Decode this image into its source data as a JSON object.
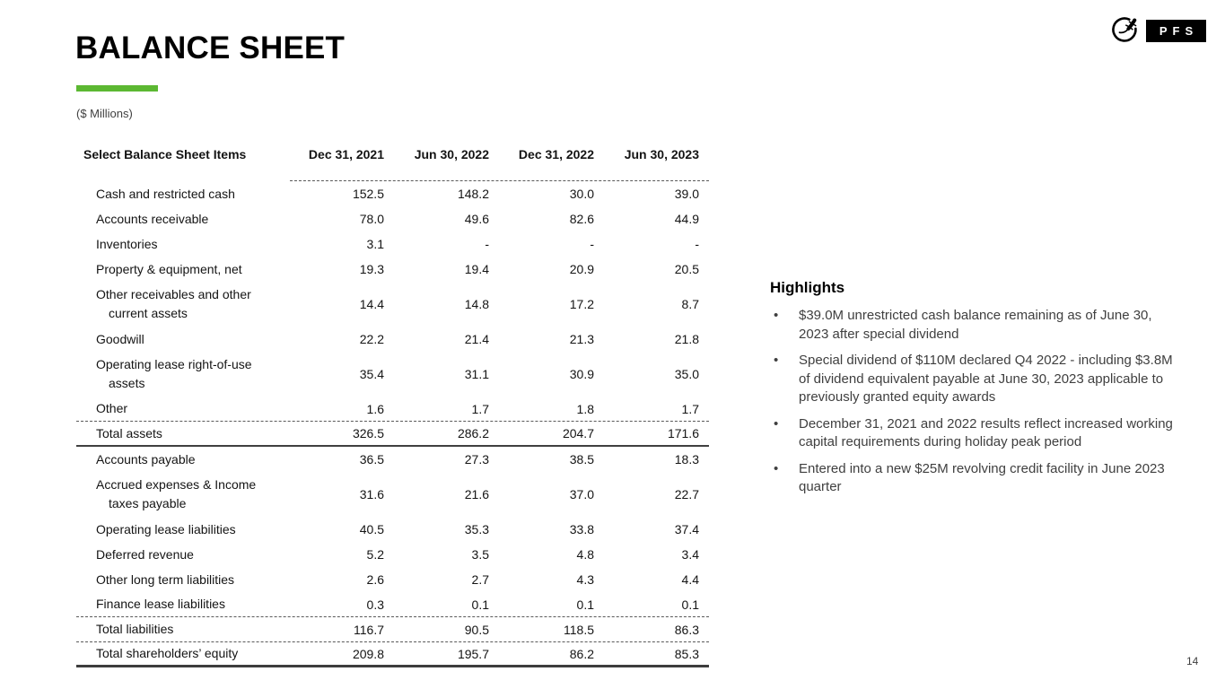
{
  "slide": {
    "title": "BALANCE SHEET",
    "units_label": "($ Millions)",
    "page_number": "14"
  },
  "logo": {
    "gecko_icon": "gecko-in-circle",
    "text": "PFS"
  },
  "table": {
    "header": {
      "label": "Select Balance Sheet Items",
      "columns": [
        "Dec 31, 2021",
        "Jun 30, 2022",
        "Dec 31, 2022",
        "Jun 30, 2023"
      ]
    },
    "rows": [
      {
        "label": "Cash and restricted cash",
        "values": [
          "152.5",
          "148.2",
          "30.0",
          "39.0"
        ]
      },
      {
        "label": "Accounts receivable",
        "values": [
          "78.0",
          "49.6",
          "82.6",
          "44.9"
        ]
      },
      {
        "label": "Inventories",
        "values": [
          "3.1",
          "-",
          "-",
          "-"
        ]
      },
      {
        "label": "Property & equipment, net",
        "values": [
          "19.3",
          "19.4",
          "20.9",
          "20.5"
        ]
      },
      {
        "label": "Other receivables and other",
        "label2": "current assets",
        "values": [
          "14.4",
          "14.8",
          "17.2",
          "8.7"
        ]
      },
      {
        "label": "Goodwill",
        "values": [
          "22.2",
          "21.4",
          "21.3",
          "21.8"
        ]
      },
      {
        "label": "Operating lease right-of-use",
        "label2": "assets",
        "values": [
          "35.4",
          "31.1",
          "30.9",
          "35.0"
        ]
      },
      {
        "label": "Other",
        "values": [
          "1.6",
          "1.7",
          "1.8",
          "1.7"
        ],
        "border": "dashed"
      },
      {
        "label": "Total assets",
        "values": [
          "326.5",
          "286.2",
          "204.7",
          "171.6"
        ],
        "border": "solid"
      },
      {
        "label": "Accounts payable",
        "values": [
          "36.5",
          "27.3",
          "38.5",
          "18.3"
        ]
      },
      {
        "label": "Accrued expenses & Income",
        "label2": "taxes payable",
        "values": [
          "31.6",
          "21.6",
          "37.0",
          "22.7"
        ]
      },
      {
        "label": "Operating lease liabilities",
        "values": [
          "40.5",
          "35.3",
          "33.8",
          "37.4"
        ]
      },
      {
        "label": "Deferred revenue",
        "values": [
          "5.2",
          "3.5",
          "4.8",
          "3.4"
        ]
      },
      {
        "label": "Other long term liabilities",
        "values": [
          "2.6",
          "2.7",
          "4.3",
          "4.4"
        ]
      },
      {
        "label": "Finance lease liabilities",
        "values": [
          "0.3",
          "0.1",
          "0.1",
          "0.1"
        ],
        "border": "dashed"
      },
      {
        "label": "Total liabilities",
        "values": [
          "116.7",
          "90.5",
          "118.5",
          "86.3"
        ],
        "border": "dashed"
      },
      {
        "label": "Total shareholders’ equity",
        "values": [
          "209.8",
          "195.7",
          "86.2",
          "85.3"
        ],
        "border": "thick"
      }
    ]
  },
  "highlights": {
    "title": "Highlights",
    "bullets": [
      "$39.0M unrestricted cash balance remaining as of June 30, 2023 after special dividend",
      "Special dividend of $110M declared Q4 2022 - including $3.8M of dividend equivalent payable at June 30, 2023 applicable to previously granted equity awards",
      "December 31, 2021 and 2022 results reflect increased working capital requirements during holiday peak period",
      "Entered into a new $25M revolving credit facility in June 2023 quarter"
    ]
  },
  "colors": {
    "accent_green": "#5CB832",
    "dashed_line": "#595959",
    "total_line": "#404040",
    "body_text": "#3F3F3F",
    "logo_bg": "#000000"
  }
}
